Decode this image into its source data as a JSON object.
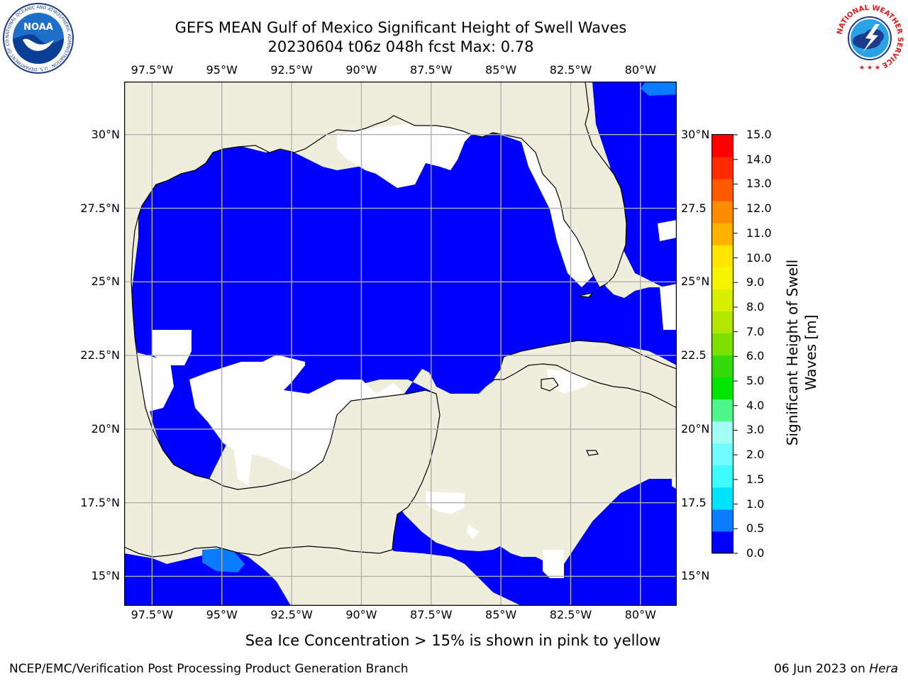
{
  "title_line1": "GEFS MEAN Gulf of Mexico Significant Height of Swell Waves",
  "title_line2": "20230604 t06z 048h fcst   Max: 0.78",
  "logos": {
    "left": {
      "name": "noaa-logo",
      "text": "NOAA",
      "ring_text": "NATIONAL OCEANIC AND ATMOSPHERIC ADMINISTRATION · U.S. DEPARTMENT OF COMMERCE"
    },
    "right": {
      "name": "nws-logo",
      "ring_text": "NATIONAL WEATHER SERVICE"
    }
  },
  "map": {
    "lon_range": [
      -98.5,
      -78.7
    ],
    "lat_range": [
      14.0,
      31.8
    ],
    "lon_ticks": [
      "97.5°W",
      "95°W",
      "92.5°W",
      "90°W",
      "87.5°W",
      "85°W",
      "82.5°W",
      "80°W"
    ],
    "lon_values": [
      -97.5,
      -95,
      -92.5,
      -90,
      -87.5,
      -85,
      -82.5,
      -80
    ],
    "lat_ticks_left": [
      "30°N",
      "27.5°N",
      "25°N",
      "22.5°N",
      "20°N",
      "17.5°N",
      "15°N"
    ],
    "lat_ticks_right": [
      "30°N",
      "27.5",
      "25°N",
      "22.5",
      "20°N",
      "17.5",
      "15°N"
    ],
    "lat_values": [
      30,
      27.5,
      25,
      22.5,
      20,
      17.5,
      15
    ],
    "grid": true,
    "colors": {
      "land": "#efeedd",
      "sea_low": "#0000ff",
      "sea_mid": "#0a7cff",
      "missing": "#ffffff",
      "grid": "#b0b0b0"
    }
  },
  "colorbar": {
    "title": "Significant Height of Swell Waves [m]",
    "title_line1": "Significant Height of Swell",
    "title_line2": "Waves [m]",
    "labels": [
      "15.0",
      "14.0",
      "13.0",
      "12.0",
      "11.0",
      "10.0",
      "9.0",
      "8.0",
      "7.0",
      "6.0",
      "5.0",
      "4.0",
      "3.0",
      "2.0",
      "1.5",
      "1.0",
      "0.5",
      "0.0"
    ],
    "colors": [
      "#0000ff",
      "#0a7cff",
      "#00e5ff",
      "#3dfcff",
      "#6efcff",
      "#a3fff5",
      "#4ff78b",
      "#00e600",
      "#33d90a",
      "#7ce000",
      "#b2e600",
      "#d6f000",
      "#f5f500",
      "#ffe600",
      "#ffb300",
      "#ff8c00",
      "#ff5a00",
      "#ff2a00",
      "#ff0000"
    ]
  },
  "note": "Sea Ice Concentration > 15% is shown in pink to yellow",
  "footer_left": "NCEP/EMC/Verification Post Processing Product Generation Branch",
  "footer_date": "06 Jun 2023 on ",
  "footer_host": "Hera"
}
